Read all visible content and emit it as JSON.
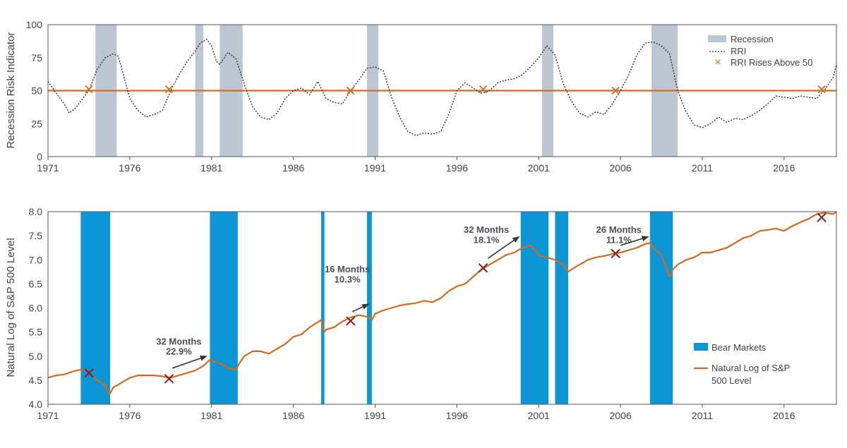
{
  "chart_data": [
    {
      "type": "line",
      "ylabel": "Recession Risk Indicator",
      "xlim": [
        1971,
        2019.2
      ],
      "ylim": [
        0,
        100
      ],
      "y_ticks": [
        0,
        25,
        50,
        75,
        100
      ],
      "x_ticks": [
        1971,
        1976,
        1981,
        1986,
        1991,
        1996,
        2001,
        2006,
        2011,
        2016
      ],
      "threshold": 50,
      "legend": {
        "position": "top-right",
        "recession": "Recession",
        "rri": "RRI",
        "rises": "RRI Rises Above 50"
      },
      "recessions": [
        [
          1973.9,
          1975.2
        ],
        [
          1980.0,
          1980.5
        ],
        [
          1981.5,
          1982.9
        ],
        [
          1990.5,
          1991.2
        ],
        [
          2001.2,
          2001.9
        ],
        [
          2007.9,
          2009.5
        ]
      ],
      "rri_rises_above_50": [
        [
          1973.5,
          51
        ],
        [
          1978.4,
          51
        ],
        [
          1989.5,
          50
        ],
        [
          1997.6,
          51
        ],
        [
          2005.7,
          50
        ],
        [
          2018.3,
          51
        ]
      ],
      "series": [
        {
          "name": "RRI",
          "x": [
            1971,
            1971.5,
            1972,
            1972.3,
            1972.7,
            1973,
            1973.5,
            1974,
            1974.5,
            1975,
            1975.3,
            1975.7,
            1976,
            1976.5,
            1977,
            1977.5,
            1978,
            1978.5,
            1979,
            1979.5,
            1980,
            1980.3,
            1980.7,
            1981,
            1981.3,
            1981.5,
            1982,
            1982.5,
            1983,
            1983.5,
            1984,
            1984.5,
            1985,
            1985.5,
            1986,
            1986.5,
            1987,
            1987.5,
            1988,
            1988.5,
            1989,
            1989.5,
            1990,
            1990.5,
            1991,
            1991.5,
            1992,
            1992.5,
            1993,
            1993.5,
            1994,
            1994.5,
            1995,
            1995.5,
            1996,
            1996.5,
            1997,
            1997.5,
            1998,
            1998.5,
            1999,
            1999.5,
            2000,
            2000.5,
            2001,
            2001.5,
            2002,
            2002.5,
            2003,
            2003.5,
            2004,
            2004.5,
            2005,
            2005.5,
            2006,
            2006.5,
            2007,
            2007.5,
            2008,
            2008.5,
            2009,
            2009.5,
            2010,
            2010.5,
            2011,
            2011.5,
            2012,
            2012.5,
            2013,
            2013.5,
            2014,
            2014.5,
            2015,
            2015.5,
            2016,
            2016.5,
            2017,
            2017.5,
            2018,
            2018.5,
            2019,
            2019.2
          ],
          "values": [
            57,
            48,
            40,
            33,
            37,
            42,
            50,
            66,
            75,
            78,
            76,
            58,
            44,
            35,
            30,
            32,
            35,
            50,
            62,
            72,
            80,
            86,
            89,
            84,
            72,
            70,
            79,
            74,
            55,
            38,
            30,
            28,
            33,
            44,
            50,
            52,
            47,
            57,
            44,
            41,
            40,
            50,
            58,
            67,
            68,
            65,
            45,
            30,
            19,
            16,
            18,
            17,
            19,
            32,
            50,
            56,
            52,
            48,
            50,
            56,
            58,
            59,
            62,
            68,
            75,
            84,
            77,
            55,
            42,
            33,
            30,
            34,
            32,
            40,
            50,
            62,
            77,
            86,
            87,
            84,
            78,
            50,
            34,
            24,
            22,
            25,
            30,
            26,
            29,
            28,
            31,
            35,
            40,
            46,
            45,
            44,
            46,
            45,
            44,
            51,
            60,
            70
          ]
        }
      ]
    },
    {
      "type": "line",
      "ylabel": "Natural Log of S&P 500 Level",
      "xlim": [
        1971,
        2019.2
      ],
      "ylim": [
        4.0,
        8.0
      ],
      "y_ticks": [
        "4.0",
        "4.5",
        "5.0",
        "5.5",
        "6.0",
        "6.5",
        "7.0",
        "7.5",
        "8.0"
      ],
      "x_ticks": [
        1971,
        1976,
        1981,
        1986,
        1991,
        1996,
        2001,
        2006,
        2011,
        2016
      ],
      "legend": {
        "position": "right",
        "bear": "Bear Markets",
        "sp_line1": "Natural Log of S&P",
        "sp_line2": "500 Level"
      },
      "bear_markets": [
        [
          1973.0,
          1974.8
        ],
        [
          1980.9,
          1982.6
        ],
        [
          1987.7,
          1987.9
        ],
        [
          1990.5,
          1990.8
        ],
        [
          1999.9,
          2001.6
        ],
        [
          2002.0,
          2002.8
        ],
        [
          2007.8,
          2009.2
        ]
      ],
      "markers": [
        [
          1973.5,
          4.65
        ],
        [
          1978.4,
          4.53
        ],
        [
          1989.5,
          5.73
        ],
        [
          1997.6,
          6.83
        ],
        [
          2005.7,
          7.13
        ],
        [
          2018.3,
          7.88
        ]
      ],
      "annotations": [
        {
          "months": "32 Months",
          "pct": "22.9%",
          "text_x": 1979.0,
          "text_y1": 5.24,
          "text_y2": 5.03,
          "arrow": [
            1978.6,
            4.75,
            1980.7,
            5.0
          ]
        },
        {
          "months": "16 Months",
          "pct": "10.3%",
          "text_x": 1989.3,
          "text_y1": 6.74,
          "text_y2": 6.53,
          "arrow": [
            1989.6,
            5.92,
            1990.6,
            6.08
          ]
        },
        {
          "months": "32 Months",
          "pct": "18.1%",
          "text_x": 1997.8,
          "text_y1": 7.56,
          "text_y2": 7.35,
          "arrow": [
            1997.9,
            7.03,
            1999.8,
            7.48
          ]
        },
        {
          "months": "26 Months",
          "pct": "11.1%",
          "text_x": 2005.9,
          "text_y1": 7.56,
          "text_y2": 7.35,
          "arrow": [
            2006.0,
            7.3,
            2007.7,
            7.48
          ]
        }
      ],
      "series": [
        {
          "name": "Natural Log of S&P 500 Level",
          "x": [
            1971,
            1971.5,
            1972,
            1972.5,
            1973,
            1973.3,
            1973.6,
            1974,
            1974.5,
            1974.75,
            1975,
            1975.5,
            1976,
            1976.5,
            1977,
            1977.5,
            1978,
            1978.5,
            1979,
            1979.5,
            1980,
            1980.5,
            1980.9,
            1981.5,
            1982,
            1982.5,
            1982.7,
            1983,
            1983.5,
            1984,
            1984.5,
            1985,
            1985.5,
            1986,
            1986.5,
            1987,
            1987.7,
            1987.9,
            1988,
            1988.5,
            1989,
            1989.5,
            1990,
            1990.5,
            1990.8,
            1991,
            1991.5,
            1992,
            1992.5,
            1993,
            1993.5,
            1994,
            1994.5,
            1995,
            1995.5,
            1996,
            1996.5,
            1997,
            1997.5,
            1998,
            1998.5,
            1999,
            1999.5,
            2000,
            2000.5,
            2001,
            2001.5,
            2002,
            2002.5,
            2002.8,
            2003,
            2003.5,
            2004,
            2004.5,
            2005,
            2005.5,
            2006,
            2006.5,
            2007,
            2007.5,
            2007.8,
            2008,
            2008.5,
            2009,
            2009.2,
            2009.5,
            2010,
            2010.5,
            2011,
            2011.5,
            2012,
            2012.5,
            2013,
            2013.5,
            2014,
            2014.5,
            2015,
            2015.5,
            2016,
            2016.5,
            2017,
            2017.5,
            2018,
            2018.5,
            2019,
            2019.2
          ],
          "values": [
            4.55,
            4.6,
            4.62,
            4.68,
            4.72,
            4.7,
            4.62,
            4.5,
            4.4,
            4.2,
            4.35,
            4.45,
            4.55,
            4.6,
            4.6,
            4.6,
            4.58,
            4.55,
            4.6,
            4.65,
            4.7,
            4.8,
            4.92,
            4.85,
            4.75,
            4.72,
            4.85,
            5.0,
            5.1,
            5.1,
            5.05,
            5.15,
            5.25,
            5.4,
            5.45,
            5.6,
            5.75,
            5.5,
            5.55,
            5.6,
            5.72,
            5.8,
            5.85,
            5.82,
            5.75,
            5.88,
            5.95,
            6.0,
            6.05,
            6.08,
            6.1,
            6.15,
            6.12,
            6.2,
            6.35,
            6.45,
            6.5,
            6.65,
            6.8,
            6.9,
            7.0,
            7.1,
            7.15,
            7.25,
            7.3,
            7.1,
            7.05,
            7.0,
            6.9,
            6.75,
            6.8,
            6.9,
            7.0,
            7.05,
            7.08,
            7.12,
            7.15,
            7.2,
            7.25,
            7.33,
            7.35,
            7.25,
            7.1,
            6.65,
            6.8,
            6.9,
            7.0,
            7.05,
            7.15,
            7.15,
            7.2,
            7.25,
            7.35,
            7.45,
            7.5,
            7.6,
            7.62,
            7.65,
            7.6,
            7.7,
            7.78,
            7.85,
            7.95,
            7.98,
            7.95,
            8.0
          ]
        }
      ]
    }
  ]
}
